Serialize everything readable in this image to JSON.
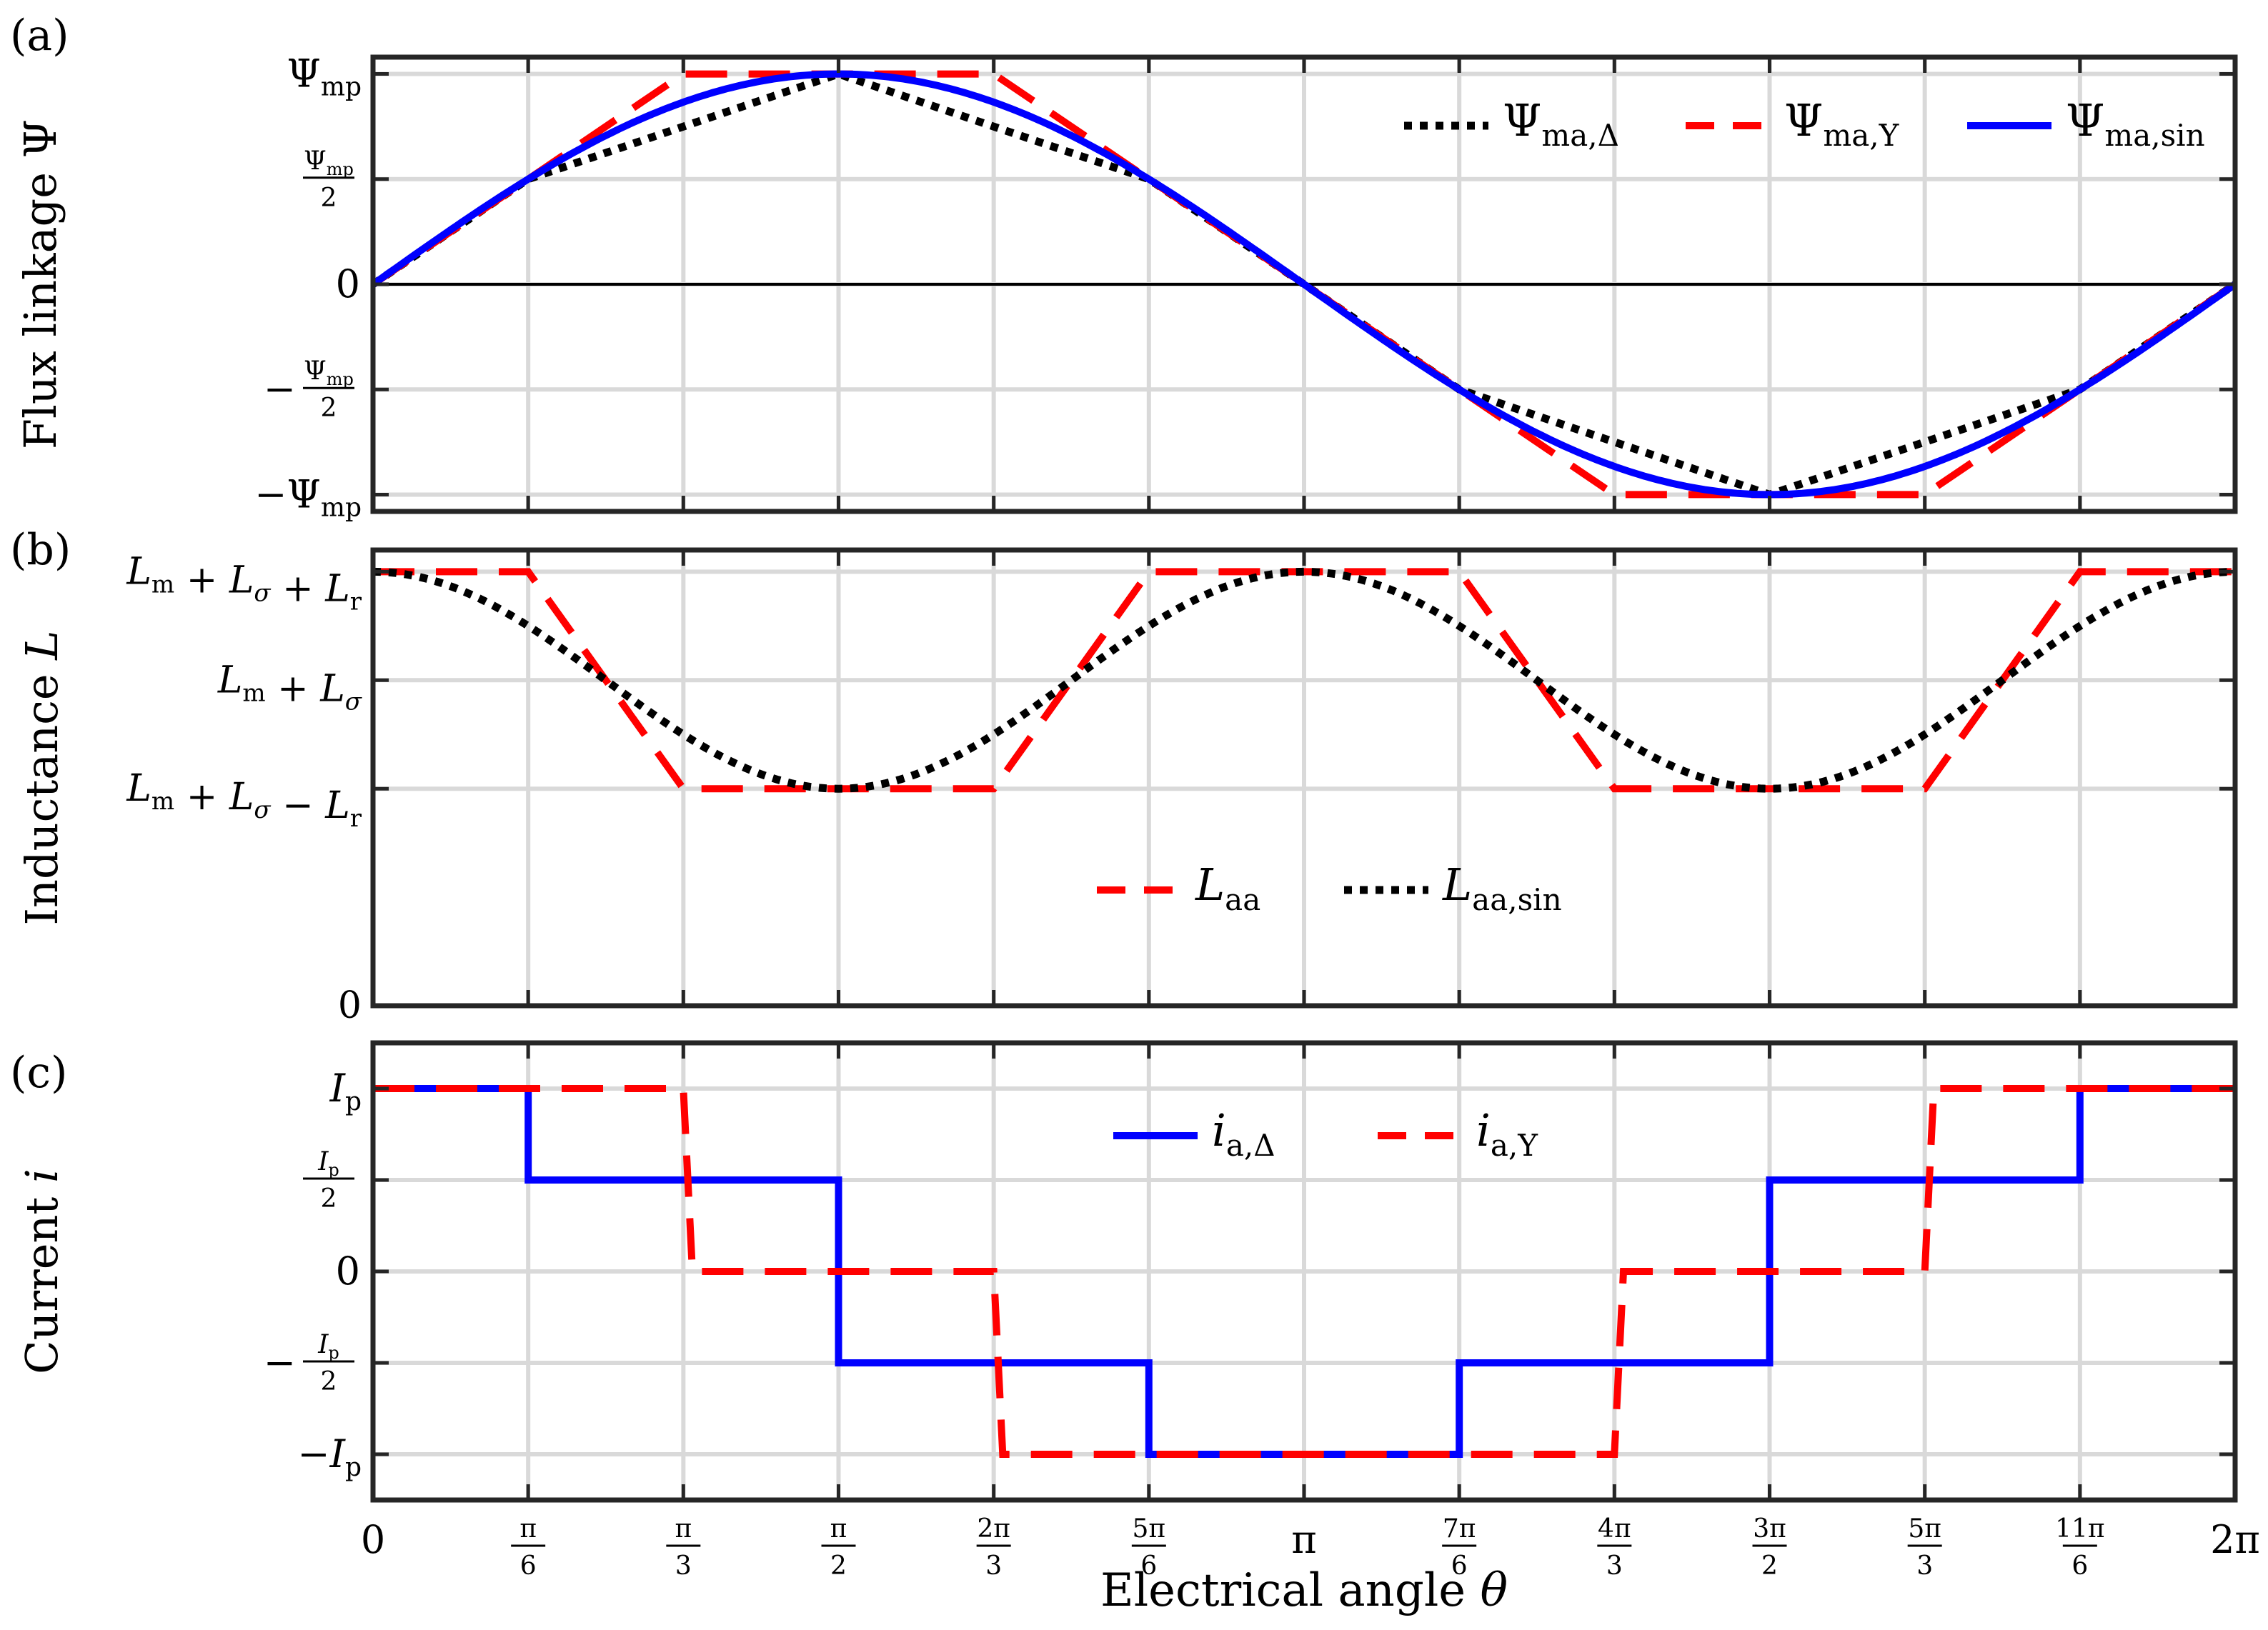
{
  "figure": {
    "xlabel": "Electrical angle θ",
    "xticks": [
      {
        "value": 0,
        "num": "0",
        "den": ""
      },
      {
        "value": 0.5236,
        "num": "π",
        "den": "6"
      },
      {
        "value": 1.0472,
        "num": "π",
        "den": "3"
      },
      {
        "value": 1.5708,
        "num": "π",
        "den": "2"
      },
      {
        "value": 2.0944,
        "num": "2π",
        "den": "3"
      },
      {
        "value": 2.618,
        "num": "5π",
        "den": "6"
      },
      {
        "value": 3.1416,
        "num": "π",
        "den": ""
      },
      {
        "value": 3.6652,
        "num": "7π",
        "den": "6"
      },
      {
        "value": 4.1888,
        "num": "4π",
        "den": "3"
      },
      {
        "value": 4.7124,
        "num": "3π",
        "den": "2"
      },
      {
        "value": 5.236,
        "num": "5π",
        "den": "3"
      },
      {
        "value": 5.7596,
        "num": "11π",
        "den": "6"
      },
      {
        "value": 6.2832,
        "num": "2π",
        "den": ""
      }
    ],
    "colors": {
      "blue": "#0000ff",
      "red": "#ff0000",
      "black": "#000000",
      "grid": "#d9d9d9"
    }
  },
  "chart_data": [
    {
      "panel": "(a)",
      "type": "line",
      "ylabel": "Flux linkage Ψ",
      "xlim": [
        0,
        6.2832
      ],
      "ylim": [
        -1.08,
        1.08
      ],
      "yticks": [
        {
          "value": 1,
          "label": "Ψ",
          "sub": "mp",
          "frac": false,
          "neg": false
        },
        {
          "value": 0.5,
          "label": "Ψ",
          "sub": "mp",
          "frac": true,
          "neg": false
        },
        {
          "value": 0,
          "label": "0",
          "sub": "",
          "frac": false,
          "neg": false
        },
        {
          "value": -0.5,
          "label": "Ψ",
          "sub": "mp",
          "frac": true,
          "neg": true
        },
        {
          "value": -1,
          "label": "Ψ",
          "sub": "mp",
          "frac": false,
          "neg": true
        }
      ],
      "legend": "upper-right",
      "series": [
        {
          "name": "Ψ",
          "sub": "ma,Δ",
          "style": "dotted",
          "color": "#000000",
          "x": [
            0,
            0.5236,
            1.5708,
            2.618,
            3.1416,
            3.6652,
            4.7124,
            5.7596,
            6.2832
          ],
          "y": [
            0,
            0.5,
            1,
            0.5,
            0,
            -0.5,
            -1,
            -0.5,
            0
          ]
        },
        {
          "name": "Ψ",
          "sub": "ma,Y",
          "style": "dashed",
          "color": "#ff0000",
          "x": [
            0,
            1.0472,
            2.0944,
            3.1416,
            4.1888,
            5.236,
            6.2832
          ],
          "y": [
            0,
            1,
            1,
            0,
            -1,
            -1,
            0
          ]
        },
        {
          "name": "Ψ",
          "sub": "ma,sin",
          "style": "solid",
          "color": "#0000ff",
          "function": "sin",
          "amplitude": 1
        }
      ]
    },
    {
      "panel": "(b)",
      "type": "line",
      "ylabel": "Inductance L",
      "xlim": [
        0,
        6.2832
      ],
      "ylim": [
        0,
        4.2
      ],
      "yticks": [
        {
          "value": 4,
          "label": "L_m + L_σ + L_r"
        },
        {
          "value": 3,
          "label": "L_m + L_σ"
        },
        {
          "value": 2,
          "label": "L_m + L_σ − L_r"
        },
        {
          "value": 0,
          "label": "0"
        }
      ],
      "legend": "lower-center",
      "series": [
        {
          "name": "L",
          "sub": "aa",
          "style": "dashed",
          "color": "#ff0000",
          "x": [
            0,
            0.5236,
            1.0472,
            2.0944,
            2.618,
            3.6652,
            4.1888,
            5.236,
            5.7596,
            6.2832
          ],
          "y": [
            4,
            4,
            2,
            2,
            4,
            4,
            2,
            2,
            4,
            4
          ]
        },
        {
          "name": "L",
          "sub": "aa,sin",
          "style": "dotted",
          "color": "#000000",
          "function": "3+cos(2θ)"
        }
      ]
    },
    {
      "panel": "(c)",
      "type": "line",
      "ylabel": "Current i",
      "xlim": [
        0,
        6.2832
      ],
      "ylim": [
        -1.25,
        1.25
      ],
      "yticks": [
        {
          "value": 1,
          "label": "I",
          "sub": "p",
          "frac": false,
          "neg": false
        },
        {
          "value": 0.5,
          "label": "I",
          "sub": "p",
          "frac": true,
          "neg": false
        },
        {
          "value": 0,
          "label": "0",
          "sub": "",
          "frac": false,
          "neg": false
        },
        {
          "value": -0.5,
          "label": "I",
          "sub": "p",
          "frac": true,
          "neg": true
        },
        {
          "value": -1,
          "label": "I",
          "sub": "p",
          "frac": false,
          "neg": true
        }
      ],
      "legend": "upper-center",
      "series": [
        {
          "name": "i",
          "sub": "a,Δ",
          "style": "solid",
          "color": "#0000ff",
          "x": [
            0,
            0.5236,
            0.5236,
            1.5708,
            1.5708,
            2.618,
            2.618,
            3.6652,
            3.6652,
            4.7124,
            4.7124,
            5.7596,
            5.7596,
            6.2832
          ],
          "y": [
            1,
            1,
            0.5,
            0.5,
            -0.5,
            -0.5,
            -1,
            -1,
            -0.5,
            -0.5,
            0.5,
            0.5,
            1,
            1
          ]
        },
        {
          "name": "i",
          "sub": "a,Y",
          "style": "dashed",
          "color": "#ff0000",
          "x": [
            0,
            1.0472,
            1.0777,
            2.0944,
            2.1249,
            4.1888,
            4.2193,
            5.236,
            5.2665,
            6.2832
          ],
          "y": [
            1,
            1,
            0,
            0,
            -1,
            -1,
            0,
            0,
            1,
            1
          ]
        }
      ]
    }
  ]
}
